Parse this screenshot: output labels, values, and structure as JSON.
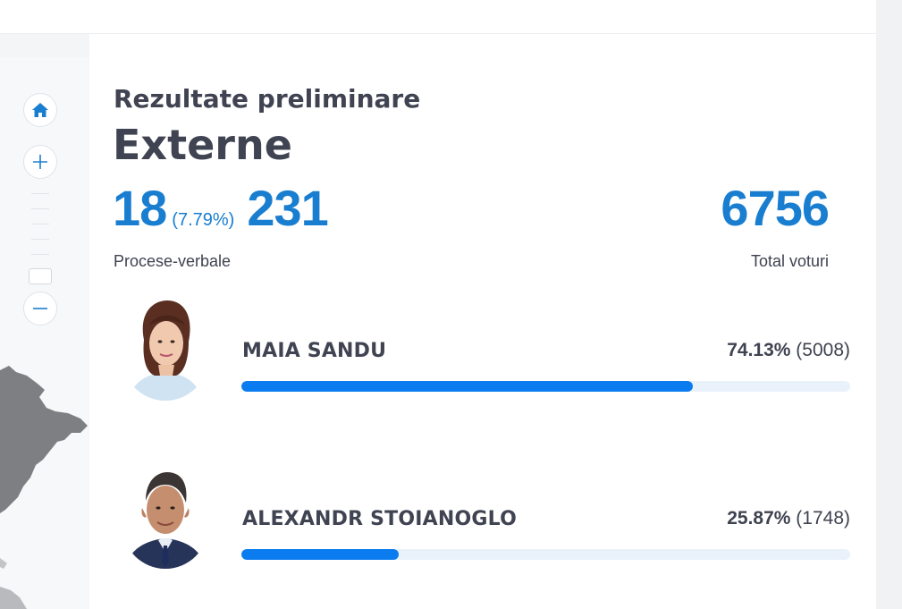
{
  "map": {
    "home_icon": "home-icon",
    "zoom_in_icon": "plus-icon",
    "zoom_out_icon": "minus-icon"
  },
  "header": {
    "subtitle": "Rezultate preliminare",
    "title": "Externe"
  },
  "stats": {
    "processed": "18",
    "processed_pct": "(7.79%)",
    "total_protocols": "231",
    "protocols_label": "Procese-verbale",
    "total_votes": "6756",
    "total_votes_label": "Total voturi"
  },
  "colors": {
    "accent": "#1a7ed0",
    "bar_fill": "#0b7bf0",
    "bar_track": "#e9f1fa",
    "text": "#404452"
  },
  "candidates": [
    {
      "name": "MAIA SANDU",
      "percent": "74.13%",
      "votes": "(5008)",
      "share": 0.7413
    },
    {
      "name": "ALEXANDR STOIANOGLO",
      "percent": "25.87%",
      "votes": "(1748)",
      "share": 0.2587
    }
  ]
}
